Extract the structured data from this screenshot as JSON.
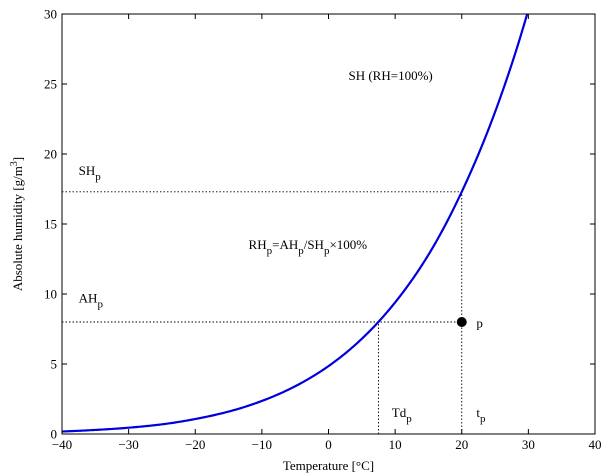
{
  "chart_data": {
    "type": "line",
    "title": "",
    "xlabel": "Temperature [°C]",
    "ylabel_parts": {
      "main": "Absolute humidity [g/m",
      "sup": "3",
      "close": "]"
    },
    "xlim": [
      -40,
      40
    ],
    "ylim": [
      0,
      30
    ],
    "xticks": [
      -40,
      -30,
      -20,
      -10,
      0,
      10,
      20,
      30,
      40
    ],
    "yticks": [
      0,
      5,
      10,
      15,
      20,
      25,
      30
    ],
    "grid": false,
    "legend": "none",
    "series": [
      {
        "label": "SH (RH=100%)",
        "color": "#0000dd",
        "x": [
          -40,
          -35,
          -30,
          -25,
          -20,
          -15,
          -10,
          -5,
          0,
          5,
          10,
          15,
          20,
          25,
          30
        ],
        "y": [
          0.18,
          0.29,
          0.45,
          0.69,
          1.07,
          1.6,
          2.36,
          3.41,
          4.85,
          6.8,
          9.4,
          12.8,
          17.3,
          23.0,
          30.3
        ]
      }
    ],
    "point": {
      "label": "p",
      "x": 20,
      "y": 8,
      "color": "#000000"
    },
    "reference_lines": [
      {
        "name": "sh-p-line",
        "type": "hline",
        "y": 17.3,
        "x_from": -40,
        "x_to": 20,
        "style": "dotted"
      },
      {
        "name": "ah-p-line",
        "type": "hline",
        "y": 8,
        "x_from": -40,
        "x_to": 20,
        "style": "dotted"
      },
      {
        "name": "td-p-line",
        "type": "vline",
        "x": 7.5,
        "y_from": 0,
        "y_to": 8,
        "style": "dotted"
      },
      {
        "name": "t-p-line",
        "type": "vline",
        "x": 20,
        "y_from": 0,
        "y_to": 17.3,
        "style": "dotted"
      }
    ],
    "annotations": [
      {
        "name": "sh-curve-label",
        "parts": [
          {
            "text": "SH (RH=100%)",
            "sub": false
          }
        ],
        "x": 3,
        "y": 25.3
      },
      {
        "name": "sh-p-label",
        "parts": [
          {
            "text": "SH",
            "sub": false
          },
          {
            "text": "p",
            "sub": true
          }
        ],
        "x": -37.5,
        "y": 18.5
      },
      {
        "name": "ah-p-label",
        "parts": [
          {
            "text": "AH",
            "sub": false
          },
          {
            "text": "p",
            "sub": true
          }
        ],
        "x": -37.5,
        "y": 9.4
      },
      {
        "name": "rh-formula-label",
        "parts": [
          {
            "text": "RH",
            "sub": false
          },
          {
            "text": "p",
            "sub": true
          },
          {
            "text": "=AH",
            "sub": false
          },
          {
            "text": "p",
            "sub": true
          },
          {
            "text": "/SH",
            "sub": false
          },
          {
            "text": "p",
            "sub": true
          },
          {
            "text": "×100%",
            "sub": false
          }
        ],
        "x": -12,
        "y": 13.2
      },
      {
        "name": "point-p-label",
        "parts": [
          {
            "text": "p",
            "sub": false
          }
        ],
        "x": 22.2,
        "y": 7.6
      },
      {
        "name": "td-p-label",
        "parts": [
          {
            "text": "Td",
            "sub": false
          },
          {
            "text": "p",
            "sub": true
          }
        ],
        "x": 9.5,
        "y": 1.2
      },
      {
        "name": "t-p-label",
        "parts": [
          {
            "text": "t",
            "sub": false
          },
          {
            "text": "p",
            "sub": true
          }
        ],
        "x": 22.2,
        "y": 1.2
      }
    ]
  }
}
